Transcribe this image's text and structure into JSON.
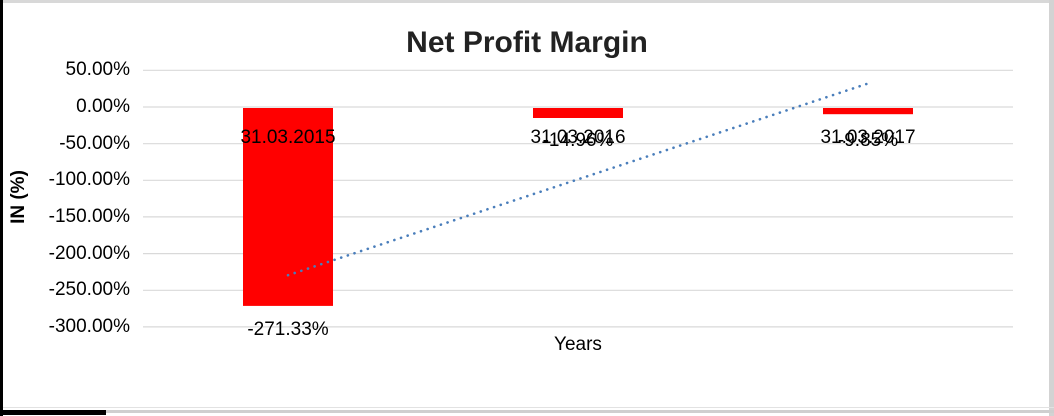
{
  "chart_data": {
    "type": "bar",
    "title": "Net Profit Margin",
    "xlabel": "Years",
    "ylabel": "IN (%)",
    "categories": [
      "31.03.2015",
      "31.03.2016",
      "31.03.2017"
    ],
    "values": [
      -271.33,
      -14.96,
      -9.85
    ],
    "data_labels": [
      "-271.33%",
      "-14.96%",
      "-9.85%"
    ],
    "ytick_labels": [
      "50.00%",
      "0.00%",
      "-50.00%",
      "-100.00%",
      "-150.00%",
      "-200.00%",
      "-250.00%",
      "-300.00%"
    ],
    "ylim": [
      -300,
      50
    ],
    "ytick_step": 50,
    "grid": true,
    "legend": "none",
    "bar_color": "#FF0000",
    "gridline_color": "#D9D9D9",
    "trendline": {
      "type": "linear",
      "style": "dotted",
      "color": "#4A7EBB",
      "start_value": -229.45,
      "end_value": 32.03
    }
  }
}
